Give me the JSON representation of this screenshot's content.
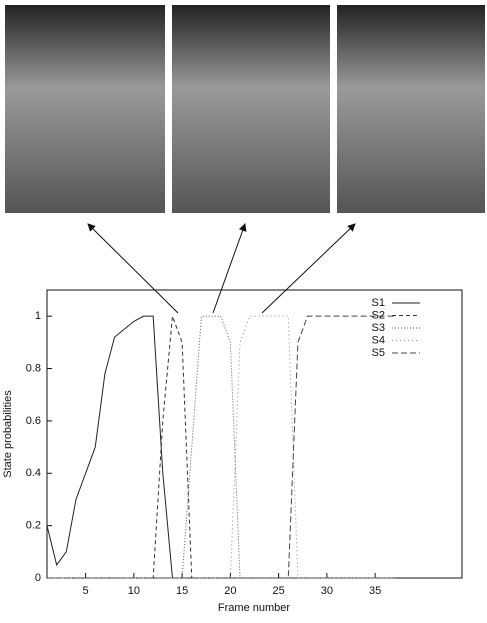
{
  "chart_data": {
    "type": "line",
    "x_label": "Frame number",
    "y_label": "State probabilities",
    "x": [
      1,
      2,
      3,
      4,
      5,
      6,
      7,
      8,
      9,
      10,
      11,
      12,
      13,
      14,
      15,
      16,
      17,
      18,
      19,
      20,
      21,
      22,
      23,
      24,
      25,
      26,
      27,
      28,
      29,
      30,
      31,
      32,
      33,
      34,
      35,
      36,
      37
    ],
    "series": [
      {
        "name": "S1",
        "color": "#222222",
        "dash": "none",
        "values": [
          0.2,
          0.05,
          0.1,
          0.3,
          0.4,
          0.5,
          0.78,
          0.92,
          0.95,
          0.98,
          1,
          1,
          0.4,
          0,
          0,
          0,
          0,
          0,
          0,
          0,
          0,
          0,
          0,
          0,
          0,
          0,
          0,
          0,
          0,
          0,
          0,
          0,
          0,
          0,
          0,
          0,
          0
        ]
      },
      {
        "name": "S2",
        "color": "#333333",
        "dash": "4 3",
        "values": [
          0,
          0,
          0,
          0,
          0,
          0,
          0,
          0,
          0,
          0,
          0,
          0,
          0.6,
          1,
          0.9,
          0,
          0,
          0,
          0,
          0,
          0,
          0,
          0,
          0,
          0,
          0,
          0,
          0,
          0,
          0,
          0,
          0,
          0,
          0,
          0,
          0,
          0
        ]
      },
      {
        "name": "S3",
        "color": "#555555",
        "dash": "1 2",
        "values": [
          0,
          0,
          0,
          0,
          0,
          0,
          0,
          0,
          0,
          0,
          0,
          0,
          0,
          0,
          0,
          0.5,
          1,
          1,
          1,
          0.9,
          0,
          0,
          0,
          0,
          0,
          0,
          0,
          0,
          0,
          0,
          0,
          0,
          0,
          0,
          0,
          0,
          0
        ]
      },
      {
        "name": "S4",
        "color": "#888888",
        "dash": "1 3",
        "values": [
          0,
          0,
          0,
          0,
          0,
          0,
          0,
          0,
          0,
          0,
          0,
          0,
          0,
          0,
          0,
          0,
          0,
          0,
          0,
          0,
          0.9,
          1,
          1,
          1,
          1,
          1,
          0,
          0,
          0,
          0,
          0,
          0,
          0,
          0,
          0,
          0,
          0
        ]
      },
      {
        "name": "S5",
        "color": "#444444",
        "dash": "6 3",
        "values": [
          0,
          0,
          0,
          0,
          0,
          0,
          0,
          0,
          0,
          0,
          0,
          0,
          0,
          0,
          0,
          0,
          0,
          0,
          0,
          0,
          0,
          0,
          0,
          0,
          0,
          0,
          0.9,
          1,
          1,
          1,
          1,
          1,
          1,
          1,
          1,
          1,
          1
        ]
      }
    ],
    "xlim": [
      1,
      44
    ],
    "xticks": [
      5,
      10,
      15,
      20,
      25,
      30,
      35
    ],
    "ylim": [
      0,
      1.1
    ],
    "yticks": [
      0,
      0.2,
      0.4,
      0.6,
      0.8,
      1
    ],
    "legend": "top-right"
  }
}
